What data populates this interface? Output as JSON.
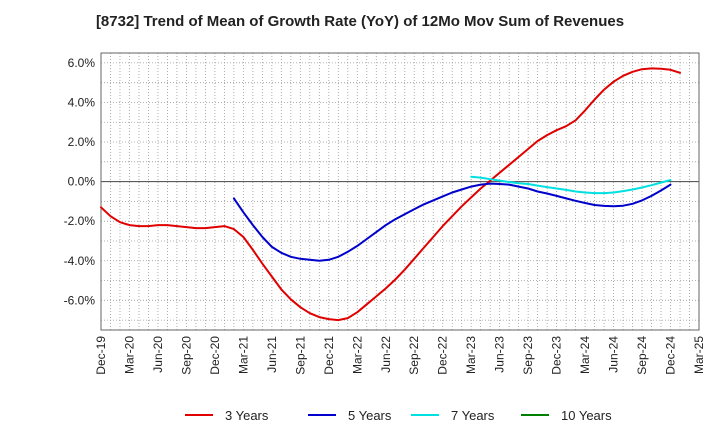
{
  "chart_data": {
    "type": "line",
    "title": "[8732]  Trend of Mean of Growth Rate (YoY) of 12Mo Mov Sum of Revenues",
    "xlabel": "",
    "ylabel": "",
    "ylim": [
      -7.5,
      6.5
    ],
    "y_ticks": [
      6.0,
      4.0,
      2.0,
      0.0,
      -2.0,
      -4.0,
      -6.0
    ],
    "y_tick_labels": [
      "6.0%",
      "4.0%",
      "2.0%",
      "0.0%",
      "-2.0%",
      "-4.0%",
      "-6.0%"
    ],
    "x_tick_labels": [
      "Dec-19",
      "Mar-20",
      "Jun-20",
      "Sep-20",
      "Dec-20",
      "Mar-21",
      "Jun-21",
      "Sep-21",
      "Dec-21",
      "Mar-22",
      "Jun-22",
      "Sep-22",
      "Dec-22",
      "Mar-23",
      "Jun-23",
      "Sep-23",
      "Dec-23",
      "Mar-24",
      "Jun-24",
      "Sep-24",
      "Dec-24",
      "Mar-25"
    ],
    "grid": true,
    "legend_position": "bottom",
    "series": [
      {
        "name": "3 Years",
        "color": "#e00000",
        "start_index": 0,
        "values": [
          -1.3,
          -1.75,
          -2.05,
          -2.2,
          -2.25,
          -2.25,
          -2.2,
          -2.2,
          -2.25,
          -2.3,
          -2.35,
          -2.35,
          -2.3,
          -2.25,
          -2.4,
          -2.8,
          -3.45,
          -4.15,
          -4.8,
          -5.45,
          -5.95,
          -6.35,
          -6.65,
          -6.85,
          -6.95,
          -7.0,
          -6.9,
          -6.6,
          -6.2,
          -5.8,
          -5.4,
          -4.95,
          -4.45,
          -3.9,
          -3.35,
          -2.8,
          -2.25,
          -1.75,
          -1.25,
          -0.8,
          -0.35,
          0.05,
          0.45,
          0.85,
          1.25,
          1.65,
          2.05,
          2.35,
          2.6,
          2.8,
          3.1,
          3.6,
          4.15,
          4.65,
          5.05,
          5.35,
          5.55,
          5.68,
          5.72,
          5.7,
          5.65,
          5.5
        ]
      },
      {
        "name": "5 Years",
        "color": "#0000cc",
        "start_index": 14,
        "values": [
          -0.85,
          -1.55,
          -2.2,
          -2.8,
          -3.3,
          -3.6,
          -3.8,
          -3.9,
          -3.95,
          -4.0,
          -3.95,
          -3.8,
          -3.55,
          -3.25,
          -2.9,
          -2.55,
          -2.2,
          -1.9,
          -1.65,
          -1.4,
          -1.15,
          -0.95,
          -0.75,
          -0.55,
          -0.4,
          -0.25,
          -0.15,
          -0.1,
          -0.12,
          -0.15,
          -0.25,
          -0.35,
          -0.5,
          -0.6,
          -0.72,
          -0.85,
          -0.97,
          -1.08,
          -1.18,
          -1.23,
          -1.25,
          -1.22,
          -1.12,
          -0.95,
          -0.72,
          -0.45,
          -0.15
        ]
      },
      {
        "name": "7 Years",
        "color": "#00e0e0",
        "start_index": 39,
        "values": [
          0.25,
          0.2,
          0.12,
          0.05,
          -0.02,
          -0.08,
          -0.12,
          -0.2,
          -0.28,
          -0.35,
          -0.42,
          -0.5,
          -0.55,
          -0.58,
          -0.58,
          -0.55,
          -0.48,
          -0.4,
          -0.3,
          -0.18,
          -0.05,
          0.08
        ]
      },
      {
        "name": "10 Years",
        "color": "#008000",
        "start_index": 0,
        "values": []
      }
    ]
  }
}
